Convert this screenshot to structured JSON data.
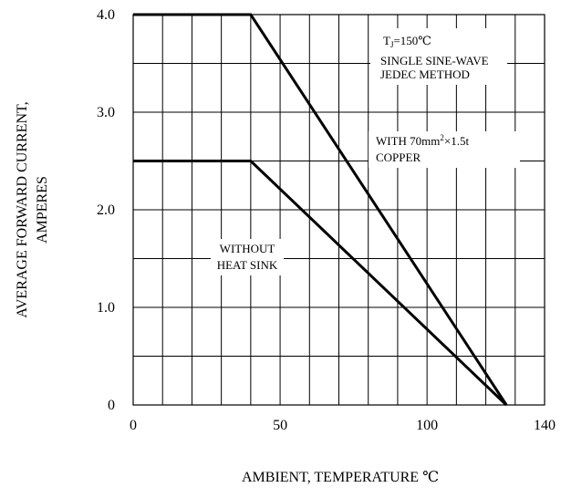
{
  "chart_data": {
    "type": "line",
    "title": "",
    "xlabel": "AMBIENT, TEMPERATURE  ℃",
    "ylabel_lines": [
      "AVERAGE FORWARD CURRENT,",
      "AMPERES"
    ],
    "xlim": [
      0,
      140
    ],
    "ylim": [
      0,
      4.0
    ],
    "x_ticks": [
      0,
      50,
      100,
      140
    ],
    "x_tick_labels": [
      "0",
      "50",
      "100",
      "140"
    ],
    "y_ticks": [
      0,
      1.0,
      2.0,
      3.0,
      4.0
    ],
    "y_tick_labels": [
      "0",
      "1.0",
      "2.0",
      "3.0",
      "4.0"
    ],
    "grid": true,
    "series": [
      {
        "x": [
          0,
          40,
          127
        ],
        "y": [
          4.0,
          4.0,
          0
        ]
      },
      {
        "x": [
          0,
          40,
          127
        ],
        "y": [
          2.5,
          2.5,
          0
        ]
      }
    ],
    "annotations": {
      "tj_label": "T",
      "tj_sub": "J",
      "tj_value": "=150℃",
      "single_sine": "SINGLE SINE-WAVE",
      "jedec": "JEDEC METHOD",
      "with_prefix": "WITH 70mm",
      "with_sup": "2",
      "with_suffix": "×1.5t",
      "copper": "COPPER",
      "without": "WITHOUT",
      "heat_sink": "HEAT SINK"
    }
  }
}
